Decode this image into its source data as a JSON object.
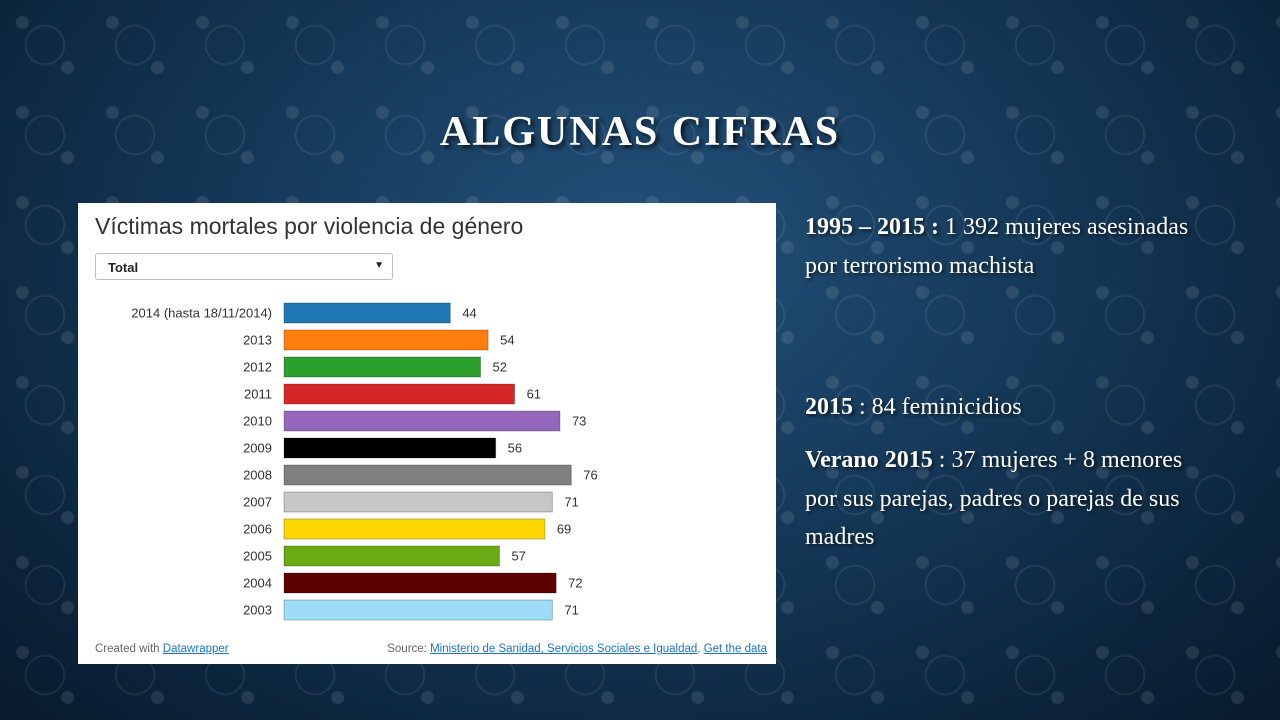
{
  "slide": {
    "title": "ALGUNAS  CIFRAS"
  },
  "chart_data": {
    "type": "bar",
    "orientation": "horizontal",
    "title": "Víctimas mortales por violencia de género",
    "filter_value": "Total",
    "categories": [
      "2014 (hasta 18/11/2014)",
      "2013",
      "2012",
      "2011",
      "2010",
      "2009",
      "2008",
      "2007",
      "2006",
      "2005",
      "2004",
      "2003"
    ],
    "values": [
      44,
      54,
      52,
      61,
      73,
      56,
      76,
      71,
      69,
      57,
      72,
      71
    ],
    "colors": [
      "#1f77b4",
      "#ff7f0e",
      "#2ca02c",
      "#d62728",
      "#9467bd",
      "#000000",
      "#7f7f7f",
      "#c7c7c7",
      "#ffd700",
      "#6aaa14",
      "#5c0000",
      "#9edcf9"
    ],
    "xlim": [
      0,
      100
    ],
    "footer": {
      "created_prefix": "Created with",
      "created_link": "Datawrapper",
      "source_prefix": "Source:",
      "source_link": "Ministerio de Sanidad, Servicios Sociales e Igualdad",
      "separator": ",",
      "data_link": "Get the data"
    }
  },
  "facts": [
    {
      "bold": "1995 – 2015 :",
      "text": " 1 392 mujeres asesinadas por terrorismo machista"
    },
    {
      "bold": "2015",
      "text": " : 84 feminicidios"
    },
    {
      "bold": "Verano 2015",
      "text": " : 37 mujeres + 8 menores por sus parejas, padres o parejas de sus madres"
    }
  ]
}
